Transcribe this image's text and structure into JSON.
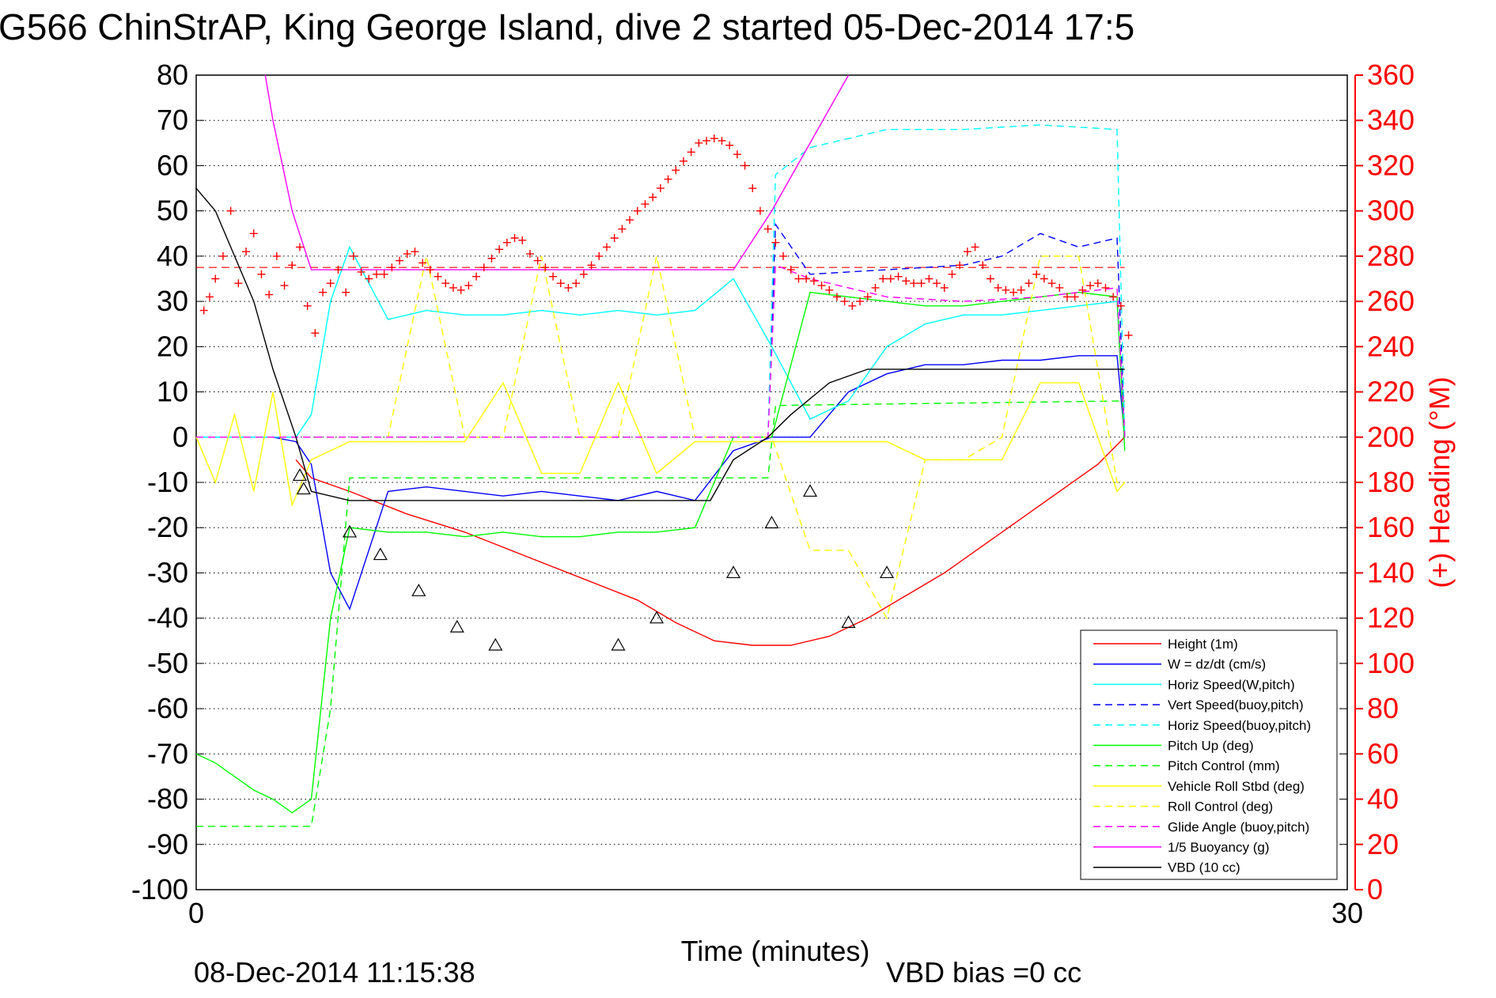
{
  "chart_data": {
    "type": "line",
    "title": "G566 ChinStrAP, King George Island, dive 2 started 05-Dec-2014 17:5",
    "xlabel": "Time (minutes)",
    "ylabel_right": "(+) Heading (°M)",
    "footer_date": "08-Dec-2014 11:15:38",
    "footer_note": "VBD bias =0 cc",
    "xlim": [
      0,
      30
    ],
    "ylim_left": [
      -100,
      80
    ],
    "ylim_right": [
      0,
      360
    ],
    "x_ticks": [
      0,
      30
    ],
    "y_ticks_left": [
      80,
      70,
      60,
      50,
      40,
      30,
      20,
      10,
      0,
      -10,
      -20,
      -30,
      -40,
      -50,
      -60,
      -70,
      -80,
      -90,
      -100
    ],
    "y_ticks_right": [
      360,
      340,
      320,
      300,
      280,
      260,
      240,
      220,
      200,
      180,
      160,
      140,
      120,
      100,
      80,
      60,
      40,
      20,
      0
    ],
    "grid": "horizontal-dotted",
    "legend_position": "bottom-right",
    "colors": {
      "right_axis": "#ff0000",
      "left_axis": "#000000"
    },
    "series": [
      {
        "name": "Height (1m)",
        "color": "#ff0000",
        "style": "solid",
        "x": [
          2.6,
          3.0,
          4.0,
          5.5,
          7.0,
          8.5,
          10.0,
          11.5,
          12.5,
          13.5,
          14.5,
          15.5,
          16.5,
          17.5,
          18.5,
          19.5,
          20.5,
          21.5,
          22.5,
          23.5,
          24.2
        ],
        "y": [
          -5,
          -9,
          -12,
          -17,
          -21,
          -26,
          -31,
          -36,
          -41,
          -45,
          -46,
          -46,
          -44,
          -40,
          -35,
          -30,
          -24,
          -18,
          -12,
          -6,
          0
        ]
      },
      {
        "name": "W = dz/dt (cm/s)",
        "color": "#0000ff",
        "style": "solid",
        "x": [
          0,
          1,
          2,
          2.6,
          3.0,
          3.5,
          4.0,
          5,
          6,
          7,
          8,
          9,
          10,
          11,
          12,
          13,
          14,
          15,
          16,
          17,
          18,
          19,
          20,
          21,
          22,
          23,
          24,
          24.2
        ],
        "y": [
          0,
          0,
          0,
          -1,
          -6,
          -30,
          -38,
          -12,
          -11,
          -12,
          -13,
          -12,
          -13,
          -14,
          -12,
          -14,
          -3,
          0,
          0,
          10,
          14,
          16,
          16,
          17,
          17,
          18,
          18,
          0
        ]
      },
      {
        "name": "Horiz Speed(W,pitch)",
        "color": "#00ffff",
        "style": "solid",
        "x": [
          0,
          1,
          2,
          2.6,
          3.0,
          3.5,
          4.0,
          5,
          6,
          7,
          8,
          9,
          10,
          11,
          12,
          13,
          14,
          15,
          16,
          17,
          18,
          19,
          20,
          21,
          22,
          23,
          24,
          24.2
        ],
        "y": [
          0,
          0,
          0,
          0,
          5,
          30,
          42,
          26,
          28,
          27,
          27,
          28,
          27,
          28,
          27,
          28,
          35,
          20,
          4,
          8,
          20,
          25,
          27,
          27,
          28,
          29,
          30,
          0
        ]
      },
      {
        "name": "Vert Speed(buoy,pitch)",
        "color": "#0000ff",
        "style": "dashed",
        "x": [
          0,
          3,
          4,
          14,
          14.9,
          15.1,
          16,
          18,
          20,
          21,
          22,
          23,
          24,
          24.2
        ],
        "y": [
          0,
          0,
          0,
          0,
          0,
          47,
          36,
          37,
          38,
          40,
          45,
          42,
          44,
          0
        ]
      },
      {
        "name": "Horiz Speed(buoy,pitch)",
        "color": "#00ffff",
        "style": "dashed",
        "x": [
          0,
          14.9,
          15.1,
          16,
          18,
          20,
          22,
          24,
          24.2
        ],
        "y": [
          0,
          0,
          58,
          64,
          68,
          68,
          69,
          68,
          0
        ]
      },
      {
        "name": "Pitch Up (deg)",
        "color": "#00ff00",
        "style": "solid",
        "x": [
          0,
          0.5,
          1,
          1.5,
          2,
          2.5,
          3.0,
          3.5,
          4.0,
          5,
          6,
          7,
          8,
          9,
          10,
          11,
          12,
          13,
          14,
          15,
          16,
          17,
          18,
          19,
          20,
          21,
          22,
          23,
          24,
          24.2
        ],
        "y": [
          -70,
          -72,
          -75,
          -78,
          -80,
          -83,
          -80,
          -40,
          -20,
          -21,
          -21,
          -22,
          -21,
          -22,
          -22,
          -21,
          -21,
          -20,
          0,
          0,
          32,
          31,
          30,
          29,
          29,
          30,
          31,
          32,
          31,
          -3
        ]
      },
      {
        "name": "Pitch Control (mm)",
        "color": "#00ff00",
        "style": "dashed",
        "x": [
          0,
          2.5,
          2.55,
          3.0,
          3.5,
          4.0,
          14.0,
          14.9,
          15.1,
          24.2
        ],
        "y": [
          -86,
          -86,
          -86,
          -86,
          -60,
          -9,
          -9,
          -9,
          7,
          8
        ]
      },
      {
        "name": "Vehicle Roll Stbd (deg)",
        "color": "#ffff00",
        "style": "solid",
        "x": [
          0,
          0.5,
          1.0,
          1.5,
          2.0,
          2.5,
          3.0,
          4.0,
          6,
          7,
          8,
          9,
          10,
          11,
          12,
          13,
          14,
          15,
          16,
          17,
          18,
          19,
          20,
          21,
          22,
          23,
          24,
          24.2
        ],
        "y": [
          0,
          -10,
          5,
          -12,
          10,
          -15,
          -5,
          -1,
          -1,
          -1,
          12,
          -8,
          -8,
          12,
          -8,
          -1,
          -1,
          -1,
          -1,
          -1,
          -1,
          -5,
          -5,
          -5,
          12,
          12,
          -12,
          -10
        ]
      },
      {
        "name": "Roll Control (deg)",
        "color": "#ffff00",
        "style": "dashed",
        "x": [
          0,
          2.0,
          3.0,
          4.0,
          5.0,
          6.0,
          7,
          8,
          9,
          10,
          11,
          12,
          13,
          14,
          15,
          16,
          17,
          18,
          19,
          20,
          21,
          22,
          23,
          24,
          24.2
        ],
        "y": [
          0,
          0,
          0,
          0,
          0,
          40,
          0,
          0,
          40,
          0,
          0,
          40,
          0,
          0,
          0,
          -25,
          -25,
          -40,
          -5,
          -5,
          0,
          40,
          40,
          -10,
          -10
        ]
      },
      {
        "name": "Glide Angle (buoy,pitch)",
        "color": "#ff00ff",
        "style": "dashed",
        "x": [
          0,
          14.9,
          15.1,
          16,
          18,
          20,
          22,
          24,
          24.2
        ],
        "y": [
          0,
          0,
          38,
          35,
          31,
          30,
          31,
          33,
          0
        ]
      },
      {
        "name": "1/5 Buoyancy (g)",
        "color": "#ff00ff",
        "style": "solid",
        "x": [
          1.8,
          2.0,
          2.5,
          3.0,
          4.0,
          6,
          8,
          10,
          12,
          14.0,
          15.0,
          16.0,
          17.0
        ],
        "y": [
          80,
          70,
          50,
          37,
          37,
          37,
          37,
          37,
          37,
          37,
          50,
          65,
          80
        ]
      },
      {
        "name": "VBD (10 cc)",
        "color": "#000000",
        "style": "solid",
        "x": [
          0,
          0.5,
          1.0,
          1.5,
          2.0,
          2.6,
          3.0,
          4.0,
          6,
          8,
          10,
          12,
          13.4,
          14.0,
          14.9,
          15.5,
          16.5,
          17.5,
          18.0,
          20,
          22,
          24,
          24.2
        ],
        "y": [
          55,
          50,
          40,
          30,
          15,
          0,
          -12,
          -14,
          -14,
          -14,
          -14,
          -14,
          -14,
          -5,
          0,
          5,
          12,
          15,
          15,
          15,
          15,
          15,
          15
        ]
      }
    ],
    "heading_points_x": [
      0.2,
      0.35,
      0.5,
      0.7,
      0.9,
      1.1,
      1.3,
      1.5,
      1.7,
      1.9,
      2.1,
      2.3,
      2.5,
      2.7,
      2.9,
      3.1,
      3.3,
      3.5,
      3.7,
      3.9,
      4.1,
      4.3,
      4.5,
      4.7,
      4.9,
      5.1,
      5.3,
      5.5,
      5.7,
      5.9,
      6.1,
      6.3,
      6.5,
      6.7,
      6.9,
      7.1,
      7.3,
      7.5,
      7.7,
      7.9,
      8.1,
      8.3,
      8.5,
      8.7,
      8.9,
      9.1,
      9.3,
      9.5,
      9.7,
      9.9,
      10.1,
      10.3,
      10.5,
      10.7,
      10.9,
      11.1,
      11.3,
      11.5,
      11.7,
      11.9,
      12.1,
      12.3,
      12.5,
      12.7,
      12.9,
      13.1,
      13.3,
      13.5,
      13.7,
      13.9,
      14.1,
      14.3,
      14.5,
      14.7,
      14.9,
      15.1,
      15.3,
      15.5,
      15.7,
      15.9,
      16.1,
      16.3,
      16.5,
      16.7,
      16.9,
      17.1,
      17.3,
      17.5,
      17.7,
      17.9,
      18.1,
      18.3,
      18.5,
      18.7,
      18.9,
      19.1,
      19.3,
      19.5,
      19.7,
      19.9,
      20.1,
      20.3,
      20.5,
      20.7,
      20.9,
      21.1,
      21.3,
      21.5,
      21.7,
      21.9,
      22.1,
      22.3,
      22.5,
      22.7,
      22.9,
      23.1,
      23.3,
      23.5,
      23.7,
      23.9,
      24.1,
      24.3
    ],
    "heading_points_y": [
      256,
      262,
      270,
      280,
      300,
      268,
      282,
      290,
      272,
      263,
      280,
      267,
      276,
      284,
      258,
      246,
      264,
      268,
      274,
      264,
      280,
      273,
      270,
      272,
      272,
      275,
      278,
      281,
      282,
      277,
      274,
      271,
      268,
      266,
      265,
      267,
      271,
      275,
      279,
      283,
      286,
      288,
      287,
      281,
      278,
      275,
      271,
      268,
      266,
      268,
      272,
      276,
      280,
      284,
      288,
      292,
      296,
      300,
      303,
      306,
      310,
      314,
      318,
      322,
      326,
      330,
      331,
      332,
      331,
      329,
      325,
      320,
      310,
      300,
      292,
      286,
      280,
      274,
      270,
      270,
      269,
      267,
      265,
      262,
      260,
      258,
      260,
      262,
      266,
      270,
      270,
      271,
      269,
      268,
      268,
      270,
      268,
      266,
      272,
      276,
      282,
      284,
      276,
      270,
      266,
      265,
      264,
      265,
      268,
      272,
      270,
      268,
      266,
      262,
      262,
      265,
      267,
      268,
      266,
      262,
      258,
      245
    ],
    "heading_reference": 275,
    "triangle_markers_x": [
      2.7,
      2.8,
      4.0,
      4.8,
      5.8,
      6.8,
      7.8,
      11.0,
      12.0,
      14.0,
      15.0,
      16.0,
      17.0,
      18.0
    ],
    "triangle_markers_y": [
      -8.5,
      -11.5,
      -21,
      -26,
      -34,
      -42,
      -46,
      -46,
      -40,
      -30,
      -19,
      -12,
      -41,
      -30
    ]
  }
}
